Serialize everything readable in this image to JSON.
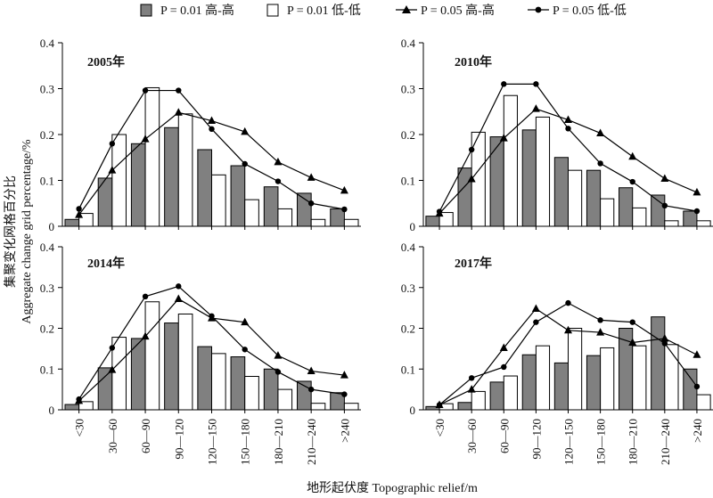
{
  "legend": [
    {
      "text": "P = 0.01  高-高",
      "marker": "bar",
      "fill": "#808080"
    },
    {
      "text": "P = 0.01  低-低",
      "marker": "bar",
      "fill": "#ffffff"
    },
    {
      "text": "P = 0.05  高-高",
      "marker": "triangle"
    },
    {
      "text": "P = 0.05  低-低",
      "marker": "circle"
    }
  ],
  "xlabel": "地形起伏度 Topographic relief/m",
  "ylabel_cn": "集聚变化网格百分比",
  "ylabel_en": "Aggregate change grid percentage/%",
  "colors": {
    "high_high_bar": "#808080",
    "low_low_bar": "#ffffff",
    "line": "#000000"
  },
  "chart_data": [
    {
      "type": "bar",
      "title": "2005年",
      "categories": [
        "<30",
        "30—60",
        "60—90",
        "90—120",
        "120—150",
        "150—180",
        "180—210",
        "210—240",
        ">240"
      ],
      "ylim": [
        0,
        0.4
      ],
      "yticks": [
        0,
        0.1,
        0.2,
        0.3,
        0.4
      ],
      "series": [
        {
          "name": "P = 0.01 高-高",
          "type": "bar",
          "values": [
            0.015,
            0.105,
            0.18,
            0.215,
            0.167,
            0.132,
            0.086,
            0.072,
            0.038
          ]
        },
        {
          "name": "P = 0.01 低-低",
          "type": "bar",
          "values": [
            0.028,
            0.2,
            0.302,
            0.245,
            0.112,
            0.058,
            0.038,
            0.015,
            0.015
          ]
        },
        {
          "name": "P = 0.05 高-高",
          "type": "line",
          "values": [
            0.025,
            0.122,
            0.19,
            0.248,
            0.23,
            0.206,
            0.14,
            0.106,
            0.078
          ]
        },
        {
          "name": "P = 0.05 低-低",
          "type": "line",
          "values": [
            0.038,
            0.18,
            0.296,
            0.296,
            0.212,
            0.136,
            0.098,
            0.05,
            0.037
          ]
        }
      ]
    },
    {
      "type": "bar",
      "title": "2010年",
      "categories": [
        "<30",
        "30—60",
        "60—90",
        "90—120",
        "120—150",
        "150—180",
        "180—210",
        "210—240",
        ">240"
      ],
      "ylim": [
        0,
        0.4
      ],
      "yticks": [
        0,
        0.1,
        0.2,
        0.3,
        0.4
      ],
      "series": [
        {
          "name": "P = 0.01 高-高",
          "type": "bar",
          "values": [
            0.022,
            0.127,
            0.195,
            0.21,
            0.15,
            0.122,
            0.084,
            0.068,
            0.033
          ]
        },
        {
          "name": "P = 0.01 低-低",
          "type": "bar",
          "values": [
            0.03,
            0.205,
            0.285,
            0.238,
            0.122,
            0.06,
            0.04,
            0.012,
            0.012
          ]
        },
        {
          "name": "P = 0.05 高-高",
          "type": "line",
          "values": [
            0.028,
            0.103,
            0.192,
            0.256,
            0.232,
            0.203,
            0.152,
            0.104,
            0.074
          ]
        },
        {
          "name": "P = 0.05 低-低",
          "type": "line",
          "values": [
            0.032,
            0.167,
            0.31,
            0.31,
            0.213,
            0.137,
            0.097,
            0.045,
            0.033
          ]
        }
      ]
    },
    {
      "type": "bar",
      "title": "2014年",
      "categories": [
        "<30",
        "30—60",
        "60—90",
        "90—120",
        "120—150",
        "150—180",
        "180—210",
        "210—240",
        ">240"
      ],
      "ylim": [
        0,
        0.4
      ],
      "yticks": [
        0,
        0.1,
        0.2,
        0.3,
        0.4
      ],
      "series": [
        {
          "name": "P = 0.01 高-高",
          "type": "bar",
          "values": [
            0.013,
            0.103,
            0.175,
            0.213,
            0.155,
            0.13,
            0.1,
            0.07,
            0.042
          ]
        },
        {
          "name": "P = 0.01 低-低",
          "type": "bar",
          "values": [
            0.02,
            0.178,
            0.265,
            0.235,
            0.138,
            0.082,
            0.05,
            0.016,
            0.016
          ]
        },
        {
          "name": "P = 0.05 高-高",
          "type": "line",
          "values": [
            0.022,
            0.098,
            0.18,
            0.272,
            0.225,
            0.215,
            0.133,
            0.095,
            0.085
          ]
        },
        {
          "name": "P = 0.05 低-低",
          "type": "line",
          "values": [
            0.026,
            0.152,
            0.278,
            0.303,
            0.23,
            0.148,
            0.093,
            0.05,
            0.038
          ]
        }
      ]
    },
    {
      "type": "bar",
      "title": "2017年",
      "categories": [
        "<30",
        "30—60",
        "60—90",
        "90—120",
        "120—150",
        "150—180",
        "180—210",
        "210—240",
        ">240"
      ],
      "ylim": [
        0,
        0.4
      ],
      "yticks": [
        0,
        0.1,
        0.2,
        0.3,
        0.4
      ],
      "series": [
        {
          "name": "P = 0.01 高-高",
          "type": "bar",
          "values": [
            0.008,
            0.018,
            0.068,
            0.135,
            0.115,
            0.133,
            0.2,
            0.228,
            0.1
          ]
        },
        {
          "name": "P = 0.01 低-低",
          "type": "bar",
          "values": [
            0.015,
            0.045,
            0.083,
            0.157,
            0.2,
            0.152,
            0.157,
            0.16,
            0.037
          ]
        },
        {
          "name": "P = 0.05 高-高",
          "type": "line",
          "values": [
            0.012,
            0.05,
            0.152,
            0.248,
            0.195,
            0.19,
            0.165,
            0.175,
            0.135
          ]
        },
        {
          "name": "P = 0.05 低-低",
          "type": "line",
          "values": [
            0.012,
            0.078,
            0.105,
            0.215,
            0.262,
            0.22,
            0.215,
            0.163,
            0.057
          ]
        }
      ]
    }
  ]
}
